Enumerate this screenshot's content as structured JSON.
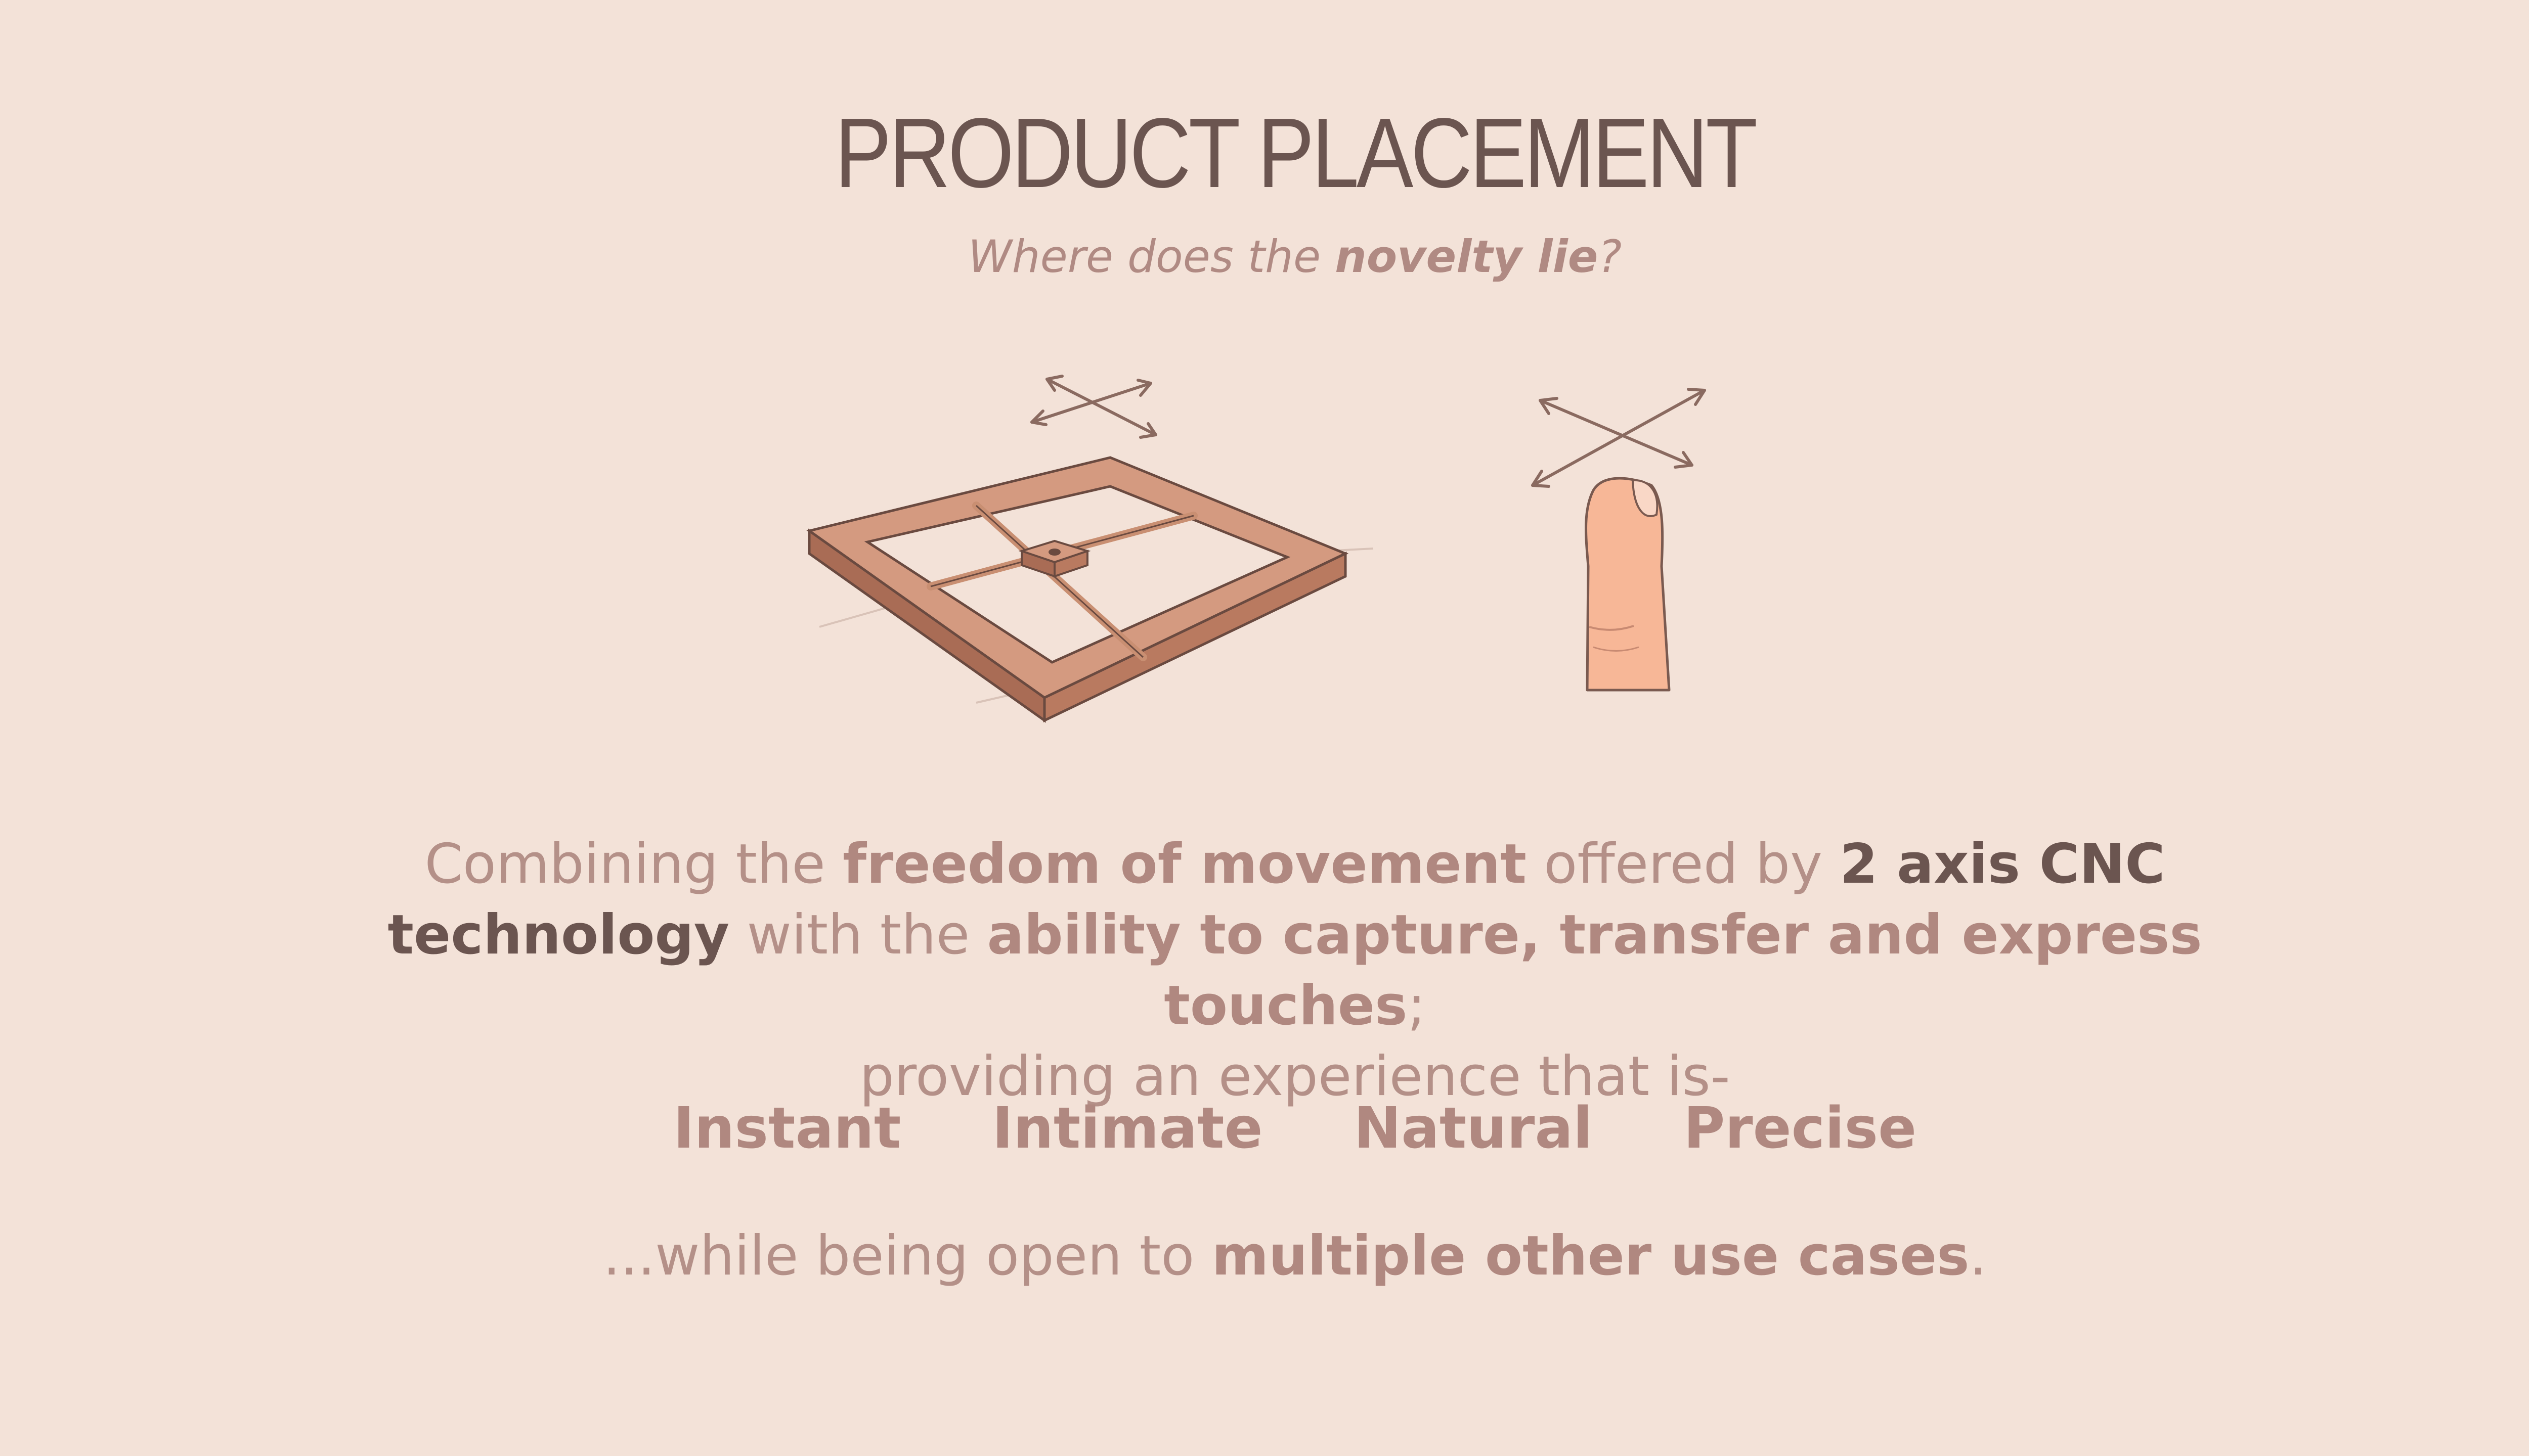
{
  "title": "PRODUCT PLACEMENT",
  "subtitle": {
    "part1": "Where does the ",
    "bold": "novelty lie",
    "part2": "?"
  },
  "illustrations": {
    "left": "cnc-frame-icon",
    "right": "finger-icon",
    "arrows": "two-axis-arrows-icon"
  },
  "body": {
    "s1": "Combining the ",
    "b1": "freedom of movement",
    "s2": " offered by ",
    "b2": "2 axis CNC technology",
    "s3": " with the ",
    "b3": "ability to capture, transfer and express touches",
    "s4": ";",
    "s5": "providing an experience that is-"
  },
  "qualities": [
    "Instant",
    "Intimate",
    "Natural",
    "Precise"
  ],
  "closing": {
    "s1": "...while being open to ",
    "b1": "multiple other use cases",
    "s2": "."
  },
  "colors": {
    "background": "#f3e2d8",
    "title": "#6b5550",
    "accent": "#b08880",
    "frame": "#c98f72",
    "finger": "#f7b797"
  }
}
